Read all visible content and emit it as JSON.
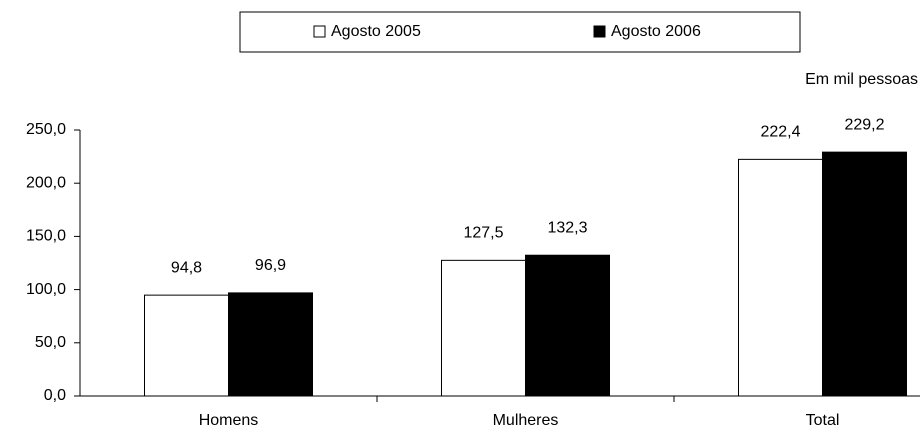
{
  "chart_data": {
    "type": "bar",
    "note_label": "Em mil pessoas",
    "categories": [
      "Homens",
      "Mulheres",
      "Total"
    ],
    "series": [
      {
        "name": "Agosto 2005",
        "color": "#ffffff",
        "values": [
          94.8,
          127.5,
          222.4
        ],
        "value_labels": [
          "94,8",
          "127,5",
          "222,4"
        ]
      },
      {
        "name": "Agosto 2006",
        "color": "#000000",
        "values": [
          96.9,
          132.3,
          229.2
        ],
        "value_labels": [
          "96,9",
          "132,3",
          "229,2"
        ]
      }
    ],
    "ylim": [
      0,
      250
    ],
    "yticks": [
      {
        "value": 0,
        "label": "0,0"
      },
      {
        "value": 50,
        "label": "50,0"
      },
      {
        "value": 100,
        "label": "100,0"
      },
      {
        "value": 150,
        "label": "150,0"
      },
      {
        "value": 200,
        "label": "200,0"
      },
      {
        "value": 250,
        "label": "250,0"
      }
    ],
    "grid": false
  }
}
